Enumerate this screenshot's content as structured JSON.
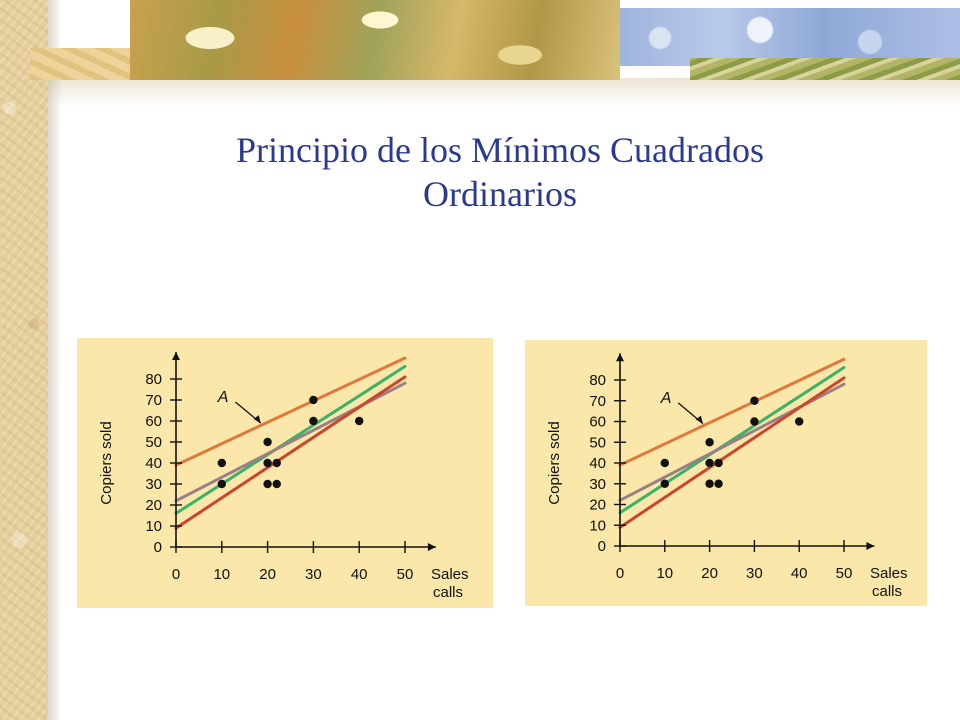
{
  "slide": {
    "title_line1": "Principio de los Mínimos Cuadrados",
    "title_line2": "Ordinarios"
  },
  "colors": {
    "panel_background": "#fbe7a9",
    "title": "#2b3a8f",
    "line_upper": "#e0783e",
    "line_lower": "#c9452b",
    "line_fit": "#3bb16a",
    "line_mid": "#9a7f86",
    "points": "#111111"
  },
  "chart_data": [
    {
      "type": "scatter",
      "title": "",
      "xlabel": "Sales calls",
      "ylabel": "Copiers sold",
      "xlim": [
        0,
        50
      ],
      "ylim": [
        0,
        80
      ],
      "x_ticks": [
        0,
        10,
        20,
        30,
        40,
        50
      ],
      "y_ticks": [
        0,
        10,
        20,
        30,
        40,
        50,
        60,
        70,
        80
      ],
      "grid": false,
      "annotation": "A",
      "points": [
        {
          "x": 10,
          "y": 30
        },
        {
          "x": 10,
          "y": 40
        },
        {
          "x": 20,
          "y": 30
        },
        {
          "x": 20,
          "y": 40
        },
        {
          "x": 20,
          "y": 50
        },
        {
          "x": 22,
          "y": 30
        },
        {
          "x": 22,
          "y": 40
        },
        {
          "x": 30,
          "y": 60
        },
        {
          "x": 30,
          "y": 70
        },
        {
          "x": 40,
          "y": 60
        }
      ],
      "lines": [
        {
          "color": "upper",
          "y_at_x0": 39,
          "y_at_x50": 90
        },
        {
          "color": "fit",
          "y_at_x0": 16,
          "y_at_x50": 86
        },
        {
          "color": "mid",
          "y_at_x0": 22,
          "y_at_x50": 78
        },
        {
          "color": "lower",
          "y_at_x0": 9,
          "y_at_x50": 81
        }
      ]
    },
    {
      "type": "scatter",
      "title": "",
      "xlabel": "Sales calls",
      "ylabel": "Copiers sold",
      "xlim": [
        0,
        50
      ],
      "ylim": [
        0,
        80
      ],
      "x_ticks": [
        0,
        10,
        20,
        30,
        40,
        50
      ],
      "y_ticks": [
        0,
        10,
        20,
        30,
        40,
        50,
        60,
        70,
        80
      ],
      "grid": false,
      "annotation": "A",
      "points": [
        {
          "x": 10,
          "y": 30
        },
        {
          "x": 10,
          "y": 40
        },
        {
          "x": 20,
          "y": 30
        },
        {
          "x": 20,
          "y": 40
        },
        {
          "x": 20,
          "y": 50
        },
        {
          "x": 22,
          "y": 30
        },
        {
          "x": 22,
          "y": 40
        },
        {
          "x": 30,
          "y": 60
        },
        {
          "x": 30,
          "y": 70
        },
        {
          "x": 40,
          "y": 60
        }
      ],
      "lines": [
        {
          "color": "upper",
          "y_at_x0": 39,
          "y_at_x50": 90
        },
        {
          "color": "fit",
          "y_at_x0": 16,
          "y_at_x50": 86
        },
        {
          "color": "mid",
          "y_at_x0": 22,
          "y_at_x50": 78
        },
        {
          "color": "lower",
          "y_at_x0": 9,
          "y_at_x50": 81
        }
      ]
    }
  ]
}
